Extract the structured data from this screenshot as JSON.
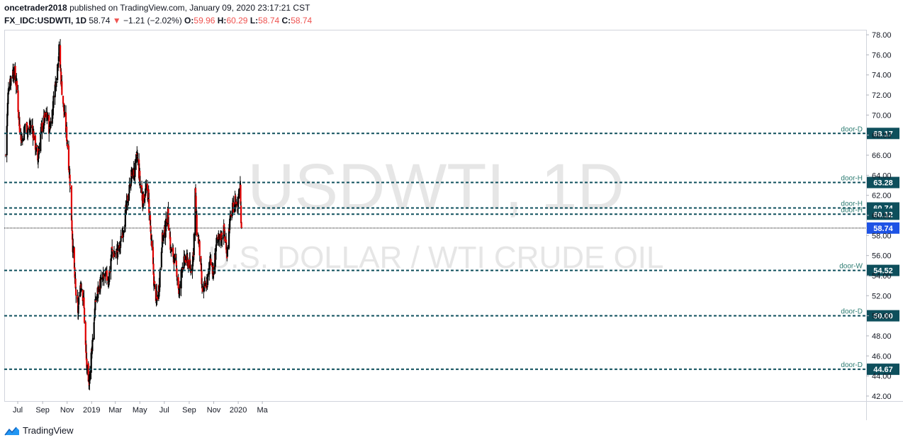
{
  "header": {
    "author": "oncetrader2018",
    "published_text": "published on TradingView.com, January 09, 2020 23:17:21 CST",
    "symbol": "FX_IDC:USDWTI, 1D",
    "last": "58.74",
    "change_arrow": "▼",
    "change": "−1.21 (−2.02%)",
    "o_label": "O:",
    "o_value": "59.96",
    "h_label": "H:",
    "h_value": "60.29",
    "l_label": "L:",
    "l_value": "58.74",
    "c_label": "C:",
    "c_value": "58.74"
  },
  "footer": {
    "brand": "TradingView"
  },
  "colors": {
    "up": "#000000",
    "down": "#e00000",
    "level": "#0e4f5c",
    "last_price": "#1e53e5",
    "watermark": "#e8e8e8"
  },
  "chart_data": {
    "type": "candlestick",
    "watermark": {
      "title": "USDWTI, 1D",
      "subtitle": "U.S. DOLLAR / WTI CRUDE OIL"
    },
    "ylim": [
      41.5,
      78.5
    ],
    "y_ticks": [
      "42.00",
      "44.00",
      "46.00",
      "48.00",
      "50.00",
      "52.00",
      "54.00",
      "56.00",
      "58.00",
      "60.00",
      "62.00",
      "64.00",
      "66.00",
      "68.00",
      "70.00",
      "72.00",
      "74.00",
      "76.00",
      "78.00"
    ],
    "x_ticks": [
      "Jul",
      "Sep",
      "Nov",
      "2019",
      "Mar",
      "May",
      "Jul",
      "Sep",
      "Nov",
      "2020",
      "Ma"
    ],
    "levels": [
      {
        "label": "door-D",
        "value": 68.17
      },
      {
        "label": "door-H",
        "value": 63.28
      },
      {
        "label": "door-H",
        "value": 60.74
      },
      {
        "label": "door-H",
        "value": 60.12
      },
      {
        "label": "door-W",
        "value": 54.52
      },
      {
        "label": "door-D",
        "value": 50.0
      },
      {
        "label": "door-D",
        "value": 44.67
      }
    ],
    "level_tags": [
      "68.17",
      "63.28",
      "60.74",
      "60.12",
      "54.52",
      "50.00",
      "44.67"
    ],
    "last_price": {
      "value": 58.74,
      "label": "58.74"
    },
    "path_points": [
      [
        "2018-06-01",
        66.0
      ],
      [
        "2018-06-08",
        73.0
      ],
      [
        "2018-06-20",
        74.5
      ],
      [
        "2018-06-28",
        73.0
      ],
      [
        "2018-07-05",
        69.0
      ],
      [
        "2018-07-12",
        67.5
      ],
      [
        "2018-07-20",
        69.0
      ],
      [
        "2018-07-28",
        68.5
      ],
      [
        "2018-08-05",
        69.0
      ],
      [
        "2018-08-12",
        67.5
      ],
      [
        "2018-08-20",
        65.5
      ],
      [
        "2018-08-28",
        68.5
      ],
      [
        "2018-09-05",
        69.5
      ],
      [
        "2018-09-12",
        70.0
      ],
      [
        "2018-09-18",
        68.5
      ],
      [
        "2018-09-24",
        70.0
      ],
      [
        "2018-10-01",
        72.5
      ],
      [
        "2018-10-08",
        75.0
      ],
      [
        "2018-10-12",
        76.5
      ],
      [
        "2018-10-18",
        73.0
      ],
      [
        "2018-10-25",
        70.0
      ],
      [
        "2018-11-01",
        67.5
      ],
      [
        "2018-11-08",
        63.5
      ],
      [
        "2018-11-15",
        57.0
      ],
      [
        "2018-11-22",
        52.5
      ],
      [
        "2018-11-28",
        50.5
      ],
      [
        "2018-12-05",
        53.5
      ],
      [
        "2018-12-12",
        51.5
      ],
      [
        "2018-12-18",
        46.0
      ],
      [
        "2018-12-24",
        42.8
      ],
      [
        "2018-12-28",
        44.5
      ],
      [
        "2019-01-04",
        48.0
      ],
      [
        "2019-01-11",
        51.5
      ],
      [
        "2019-01-20",
        53.0
      ],
      [
        "2019-01-28",
        53.5
      ],
      [
        "2019-02-05",
        54.0
      ],
      [
        "2019-02-12",
        53.5
      ],
      [
        "2019-02-20",
        56.5
      ],
      [
        "2019-03-01",
        56.0
      ],
      [
        "2019-03-12",
        56.8
      ],
      [
        "2019-03-22",
        59.0
      ],
      [
        "2019-04-01",
        61.5
      ],
      [
        "2019-04-10",
        64.0
      ],
      [
        "2019-04-18",
        64.3
      ],
      [
        "2019-04-24",
        66.0
      ],
      [
        "2019-05-01",
        63.5
      ],
      [
        "2019-05-08",
        61.5
      ],
      [
        "2019-05-16",
        62.5
      ],
      [
        "2019-05-22",
        62.0
      ],
      [
        "2019-05-30",
        57.0
      ],
      [
        "2019-06-06",
        53.0
      ],
      [
        "2019-06-12",
        51.5
      ],
      [
        "2019-06-18",
        53.0
      ],
      [
        "2019-06-25",
        57.5
      ],
      [
        "2019-07-03",
        58.5
      ],
      [
        "2019-07-10",
        60.2
      ],
      [
        "2019-07-17",
        56.5
      ],
      [
        "2019-07-24",
        56.0
      ],
      [
        "2019-08-01",
        54.5
      ],
      [
        "2019-08-07",
        52.0
      ],
      [
        "2019-08-14",
        55.0
      ],
      [
        "2019-08-21",
        55.5
      ],
      [
        "2019-08-28",
        55.5
      ],
      [
        "2019-09-05",
        54.5
      ],
      [
        "2019-09-12",
        56.5
      ],
      [
        "2019-09-16",
        62.5
      ],
      [
        "2019-09-20",
        58.5
      ],
      [
        "2019-09-26",
        57.0
      ],
      [
        "2019-10-03",
        52.5
      ],
      [
        "2019-10-10",
        52.8
      ],
      [
        "2019-10-17",
        53.5
      ],
      [
        "2019-10-24",
        56.0
      ],
      [
        "2019-10-31",
        54.0
      ],
      [
        "2019-11-07",
        57.0
      ],
      [
        "2019-11-14",
        57.5
      ],
      [
        "2019-11-21",
        58.0
      ],
      [
        "2019-11-27",
        58.5
      ],
      [
        "2019-12-03",
        56.0
      ],
      [
        "2019-12-10",
        59.0
      ],
      [
        "2019-12-17",
        60.5
      ],
      [
        "2019-12-24",
        61.5
      ],
      [
        "2019-12-31",
        61.0
      ],
      [
        "2020-01-03",
        63.0
      ],
      [
        "2020-01-06",
        63.3
      ],
      [
        "2020-01-08",
        59.9
      ],
      [
        "2020-01-09",
        58.74
      ]
    ]
  }
}
